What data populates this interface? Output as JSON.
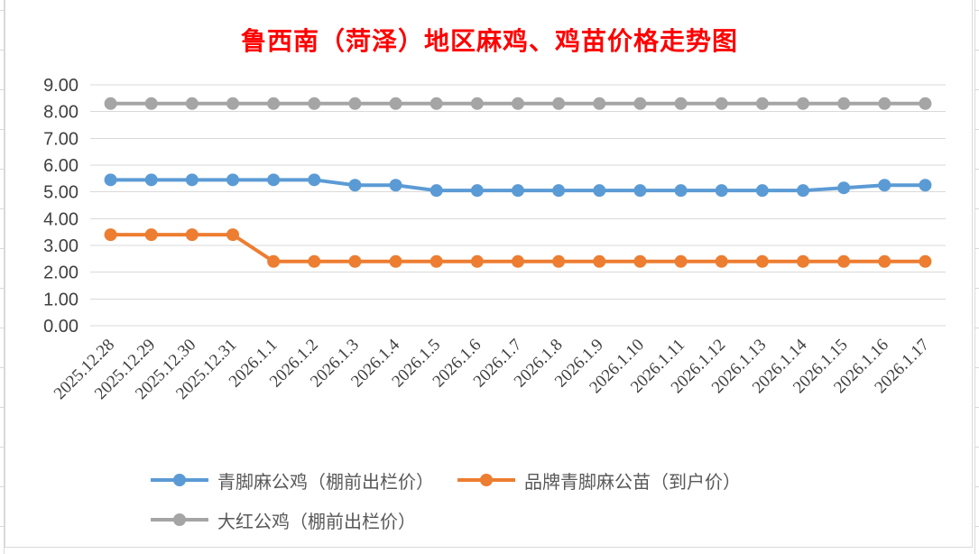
{
  "title": {
    "text": "鲁西南（菏泽）地区麻鸡、鸡苗价格走势图",
    "color": "#FF0000"
  },
  "chart_data": {
    "type": "line",
    "categories": [
      "2025.12.28",
      "2025.12.29",
      "2025.12.30",
      "2025.12.31",
      "2026.1.1",
      "2026.1.2",
      "2026.1.3",
      "2026.1.4",
      "2026.1.5",
      "2026.1.6",
      "2026.1.7",
      "2026.1.8",
      "2026.1.9",
      "2026.1.10",
      "2026.1.11",
      "2026.1.12",
      "2026.1.13",
      "2026.1.14",
      "2026.1.15",
      "2026.1.16",
      "2026.1.17"
    ],
    "series": [
      {
        "name": "青脚麻公鸡（棚前出栏价）",
        "color": "#5B9BD5",
        "values": [
          5.45,
          5.45,
          5.45,
          5.45,
          5.45,
          5.45,
          5.25,
          5.25,
          5.05,
          5.05,
          5.05,
          5.05,
          5.05,
          5.05,
          5.05,
          5.05,
          5.05,
          5.05,
          5.15,
          5.25,
          5.25
        ]
      },
      {
        "name": "品牌青脚麻公苗（到户价）",
        "color": "#ED7D31",
        "values": [
          3.4,
          3.4,
          3.4,
          3.4,
          2.4,
          2.4,
          2.4,
          2.4,
          2.4,
          2.4,
          2.4,
          2.4,
          2.4,
          2.4,
          2.4,
          2.4,
          2.4,
          2.4,
          2.4,
          2.4,
          2.4
        ]
      },
      {
        "name": "大红公鸡（棚前出栏价）",
        "color": "#A5A5A5",
        "values": [
          8.3,
          8.3,
          8.3,
          8.3,
          8.3,
          8.3,
          8.3,
          8.3,
          8.3,
          8.3,
          8.3,
          8.3,
          8.3,
          8.3,
          8.3,
          8.3,
          8.3,
          8.3,
          8.3,
          8.3,
          8.3
        ]
      }
    ],
    "ylim": [
      0,
      9
    ],
    "ytick_labels": [
      "0.00",
      "1.00",
      "2.00",
      "3.00",
      "4.00",
      "5.00",
      "6.00",
      "7.00",
      "8.00",
      "9.00"
    ],
    "x_tick_rotation": 45,
    "grid": true,
    "legend_position": "bottom-left",
    "xlabel": "",
    "ylabel": ""
  },
  "styles": {
    "gridline_color": "#D9D9D9",
    "axis_text_color": "#404040",
    "legend_text_color": "#595959",
    "panel_border_color": "#D9D9D9",
    "background": "#FFFFFF"
  }
}
